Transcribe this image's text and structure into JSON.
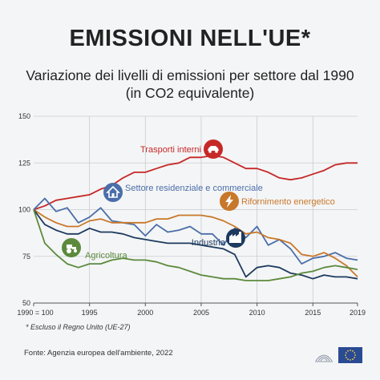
{
  "header": {
    "title": "EMISSIONI NELL'UE*",
    "subtitle_line1": "Variazione dei livelli di emissioni per settore dal 1990",
    "subtitle_line2": "(in CO2 equivalente)"
  },
  "footer": {
    "footnote": "* Escluso il Regno Unito (UE-27)",
    "source": "Fonte: Agenzia europea dell'ambiente, 2022"
  },
  "chart_data": {
    "type": "line",
    "x": [
      1990,
      1991,
      1992,
      1993,
      1994,
      1995,
      1996,
      1997,
      1998,
      1999,
      2000,
      2001,
      2002,
      2003,
      2004,
      2005,
      2006,
      2007,
      2008,
      2009,
      2010,
      2011,
      2012,
      2013,
      2014,
      2015,
      2016,
      2017,
      2018,
      2019
    ],
    "xlim": [
      1990,
      2019
    ],
    "ylim": [
      50,
      150
    ],
    "yticks": [
      50,
      75,
      100,
      125,
      150
    ],
    "ytick_labels": [
      "50",
      "75",
      "100",
      "125",
      "150"
    ],
    "xticks": [
      1990,
      1995,
      2000,
      2005,
      2010,
      2015,
      2019
    ],
    "xtick_labels": [
      "1990 = 100",
      "1995",
      "2000",
      "2005",
      "2010",
      "2015",
      "2019"
    ],
    "grid": true,
    "series": [
      {
        "name": "Trasporti interni",
        "color": "#c62828",
        "icon": "car-icon",
        "values": [
          100,
          102,
          105,
          106,
          107,
          108,
          111,
          113,
          117,
          120,
          120,
          122,
          124,
          125,
          128,
          128,
          129,
          128,
          125,
          122,
          122,
          120,
          117,
          116,
          117,
          119,
          121,
          124,
          125,
          125
        ]
      },
      {
        "name": "Settore residenziale e commerciale",
        "color": "#4a6ea9",
        "icon": "house-icon",
        "values": [
          100,
          106,
          99,
          101,
          93,
          96,
          101,
          94,
          93,
          92,
          86,
          92,
          88,
          89,
          91,
          87,
          87,
          81,
          90,
          85,
          91,
          81,
          84,
          79,
          71,
          74,
          75,
          77,
          74,
          73
        ]
      },
      {
        "name": "Rifornimento energetico",
        "color": "#c8782a",
        "icon": "lightning-icon",
        "values": [
          100,
          96,
          93,
          91,
          91,
          94,
          95,
          93,
          93,
          93,
          93,
          95,
          95,
          97,
          97,
          97,
          96,
          94,
          91,
          87,
          88,
          85,
          84,
          82,
          76,
          75,
          77,
          74,
          70,
          64
        ]
      },
      {
        "name": "Industria",
        "color": "#1d3a5f",
        "icon": "factory-icon",
        "values": [
          100,
          92,
          89,
          87,
          87,
          90,
          88,
          88,
          87,
          85,
          84,
          83,
          82,
          82,
          82,
          81,
          80,
          79,
          76,
          64,
          69,
          70,
          69,
          66,
          65,
          63,
          65,
          64,
          64,
          63
        ]
      },
      {
        "name": "Agricoltura",
        "color": "#5b8a3c",
        "icon": "tractor-icon",
        "values": [
          100,
          82,
          76,
          71,
          69,
          71,
          71,
          73,
          74,
          73,
          73,
          72,
          70,
          69,
          67,
          65,
          64,
          63,
          63,
          62,
          62,
          62,
          63,
          64,
          66,
          67,
          69,
          70,
          69,
          68
        ]
      }
    ]
  },
  "theme": {
    "grid_color": "#c9ccd1",
    "axis_color": "#555555",
    "eu_blue": "#2a4a93",
    "eu_star": "#f4d03f"
  }
}
